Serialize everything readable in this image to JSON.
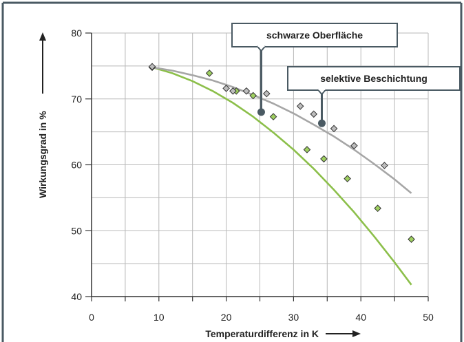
{
  "chart_data": {
    "type": "scatter",
    "xlabel": "Temperaturdifferenz in K",
    "ylabel": "Wirkungsgrad in %",
    "xlim": [
      0,
      50
    ],
    "ylim": [
      40,
      80
    ],
    "x_ticks": [
      0,
      10,
      20,
      30,
      40,
      50
    ],
    "y_ticks": [
      40,
      50,
      60,
      70,
      80
    ],
    "grid": true,
    "colors": {
      "frame": "#4a5a63",
      "grid": "#b8b8b8",
      "green_curve": "#8cbf4a",
      "grey_curve": "#a6a6a6",
      "green_marker": "#9fd060",
      "grey_marker": "#bdbdbd",
      "marker_edge": "#333333",
      "callout_border": "#4a5a63"
    },
    "series": [
      {
        "name": "schwarze Oberfläche",
        "curve_color": "green",
        "points": [
          [
            9,
            74.8
          ],
          [
            17.5,
            73.9
          ],
          [
            21.5,
            71.2
          ],
          [
            24,
            70.5
          ],
          [
            27,
            67.3
          ],
          [
            32,
            62.3
          ],
          [
            34.5,
            60.9
          ],
          [
            38,
            57.9
          ],
          [
            42.5,
            53.4
          ],
          [
            47.5,
            48.7
          ]
        ],
        "fit": [
          [
            9,
            74.8
          ],
          [
            12,
            73.9
          ],
          [
            15,
            72.7
          ],
          [
            18,
            71.2
          ],
          [
            21,
            69.4
          ],
          [
            24,
            67.3
          ],
          [
            27,
            64.9
          ],
          [
            30,
            62.3
          ],
          [
            33,
            59.4
          ],
          [
            36,
            56.2
          ],
          [
            39,
            52.8
          ],
          [
            42,
            49.1
          ],
          [
            45,
            45.2
          ],
          [
            47.5,
            41.8
          ]
        ]
      },
      {
        "name": "selektive Beschichtung",
        "curve_color": "grey",
        "points": [
          [
            9,
            74.9
          ],
          [
            20,
            71.6
          ],
          [
            21,
            71.2
          ],
          [
            23,
            71.2
          ],
          [
            26,
            70.8
          ],
          [
            31,
            68.9
          ],
          [
            33,
            67.7
          ],
          [
            36,
            65.5
          ],
          [
            39,
            62.9
          ],
          [
            43.5,
            59.9
          ]
        ],
        "fit": [
          [
            9,
            74.8
          ],
          [
            12,
            74.3
          ],
          [
            15,
            73.6
          ],
          [
            18,
            72.8
          ],
          [
            21,
            71.8
          ],
          [
            24,
            70.6
          ],
          [
            27,
            69.3
          ],
          [
            30,
            67.8
          ],
          [
            33,
            66.1
          ],
          [
            36,
            64.3
          ],
          [
            39,
            62.3
          ],
          [
            42,
            60.1
          ],
          [
            45,
            57.8
          ],
          [
            47.5,
            55.7
          ]
        ]
      }
    ],
    "callouts": [
      {
        "label": "schwarze Oberfläche",
        "anchor": [
          25.2,
          68.0
        ]
      },
      {
        "label": "selektive Beschichtung",
        "anchor": [
          34.2,
          66.3
        ]
      }
    ]
  }
}
